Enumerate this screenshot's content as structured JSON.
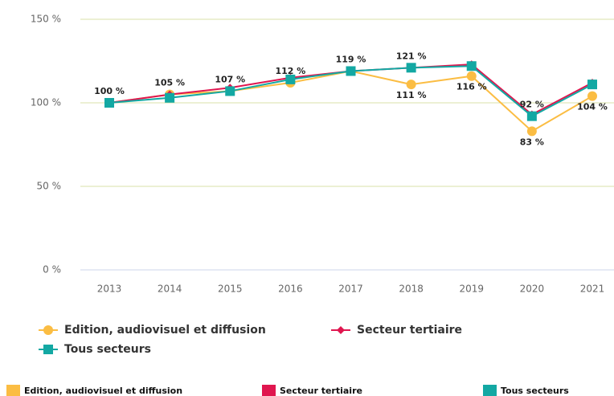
{
  "chart_data": {
    "type": "line",
    "categories": [
      "2013",
      "2014",
      "2015",
      "2016",
      "2017",
      "2018",
      "2019",
      "2020",
      "2021"
    ],
    "series": [
      {
        "name": "Edition, audiovisuel et diffusion",
        "color": "#fbbd43",
        "marker": "circle",
        "values": [
          100,
          105,
          107,
          112,
          119,
          111,
          116,
          83,
          104
        ],
        "value_labels": [
          "100 %",
          "105 %",
          "107 %",
          "112 %",
          "119 %",
          "111 %",
          "116 %",
          "83 %",
          "104 %"
        ]
      },
      {
        "name": "Secteur tertiaire",
        "color": "#e0164f",
        "marker": "diamond",
        "values": [
          100,
          105,
          109,
          115,
          119,
          121,
          123,
          93,
          112
        ]
      },
      {
        "name": "Tous secteurs",
        "color": "#13a8a3",
        "marker": "square",
        "values": [
          100,
          103,
          107,
          114,
          119,
          121,
          122,
          92,
          111
        ],
        "value_labels": [
          null,
          null,
          null,
          null,
          null,
          "121 %",
          null,
          "92 %",
          null
        ]
      }
    ],
    "ylim": [
      0,
      150
    ],
    "yticks": [
      {
        "value": 0,
        "label": "0 %"
      },
      {
        "value": 50,
        "label": "50 %"
      },
      {
        "value": 100,
        "label": "100 %"
      },
      {
        "value": 150,
        "label": "150 %"
      }
    ],
    "grid": true
  }
}
